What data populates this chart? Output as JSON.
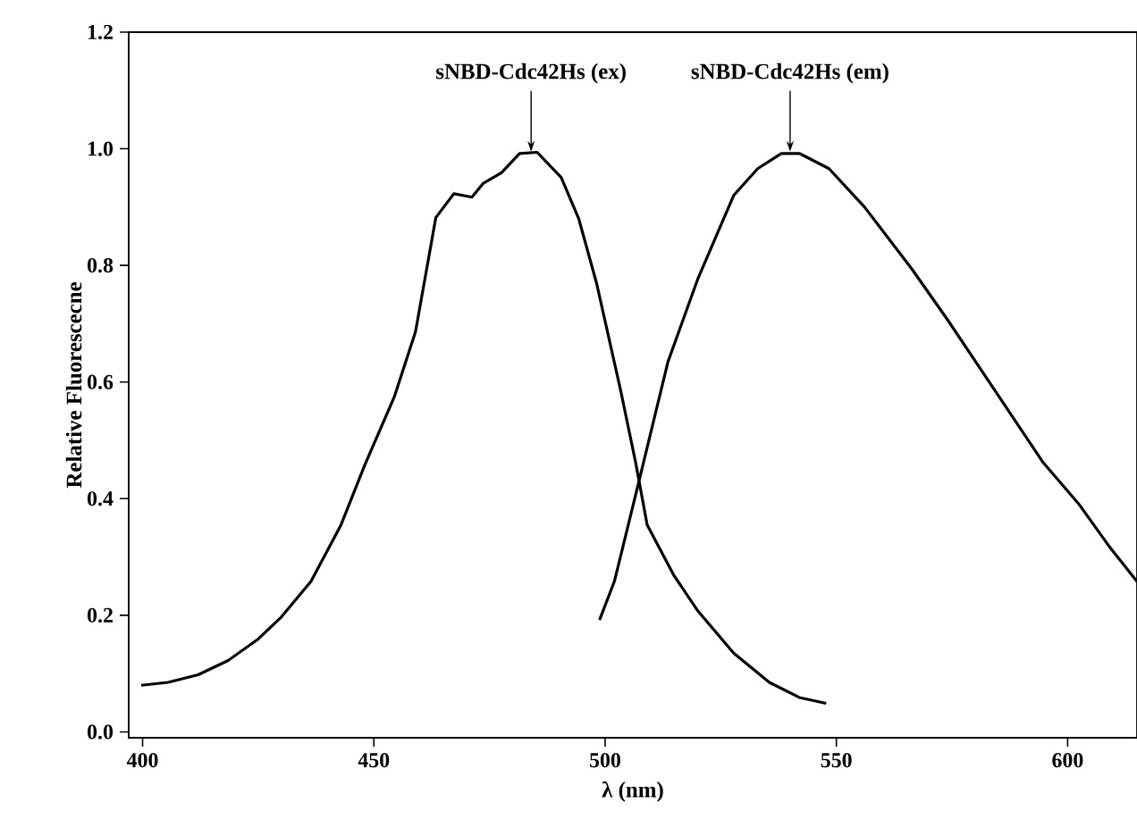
{
  "chart_data": {
    "type": "line",
    "xlabel": "λ (nm)",
    "ylabel": "Relative Fluorescecne",
    "xlim": [
      397,
      615
    ],
    "ylim": [
      -0.01,
      1.2
    ],
    "xticks": [
      400,
      450,
      500,
      550,
      600
    ],
    "yticks": [
      {
        "value": 0,
        "label": "0.0"
      },
      {
        "value": 0.2,
        "label": "0.2"
      },
      {
        "value": 0.4,
        "label": "0.4"
      },
      {
        "value": 0.6,
        "label": "0.6"
      },
      {
        "value": 0.8,
        "label": "0.8"
      },
      {
        "value": 1.0,
        "label": "1.0"
      },
      {
        "value": 1.2,
        "label": "1.2"
      }
    ],
    "marker": "none",
    "line_style": "solid",
    "series": [
      {
        "color": "#000000",
        "x": [
          399.7,
          405.5,
          412,
          418.4,
          424.8,
          430,
          436.4,
          442.9,
          448,
          454.4,
          459,
          463.4,
          467.3,
          471.2,
          473.7,
          477.6,
          481.5,
          485.3,
          490.5,
          494.3,
          498.2,
          503.4,
          506.6,
          509.1,
          514.9,
          520.1,
          527.8,
          535.5,
          542,
          547.8
        ],
        "values": [
          0.08,
          0.085,
          0.098,
          0.122,
          0.158,
          0.197,
          0.258,
          0.355,
          0.457,
          0.574,
          0.686,
          0.882,
          0.923,
          0.917,
          0.941,
          0.959,
          0.992,
          0.994,
          0.951,
          0.88,
          0.768,
          0.584,
          0.462,
          0.355,
          0.268,
          0.207,
          0.135,
          0.085,
          0.059,
          0.049
        ]
      },
      {
        "color": "#000000",
        "x": [
          498.8,
          502,
          507.2,
          513.6,
          520.1,
          527.8,
          533,
          538.1,
          542,
          548.4,
          556.1,
          566.4,
          574.1,
          584.4,
          594.7,
          602.4,
          608.9,
          615
        ],
        "values": [
          0.192,
          0.258,
          0.426,
          0.635,
          0.778,
          0.92,
          0.966,
          0.992,
          0.992,
          0.966,
          0.9,
          0.793,
          0.706,
          0.584,
          0.462,
          0.391,
          0.319,
          0.258
        ]
      }
    ],
    "annotations": [
      {
        "text": "sNBD-Cdc42Hs (ex)",
        "x": 484,
        "y": 0.995
      },
      {
        "text": "sNBD-Cdc42Hs (em)",
        "x": 540,
        "y": 0.995
      }
    ]
  }
}
